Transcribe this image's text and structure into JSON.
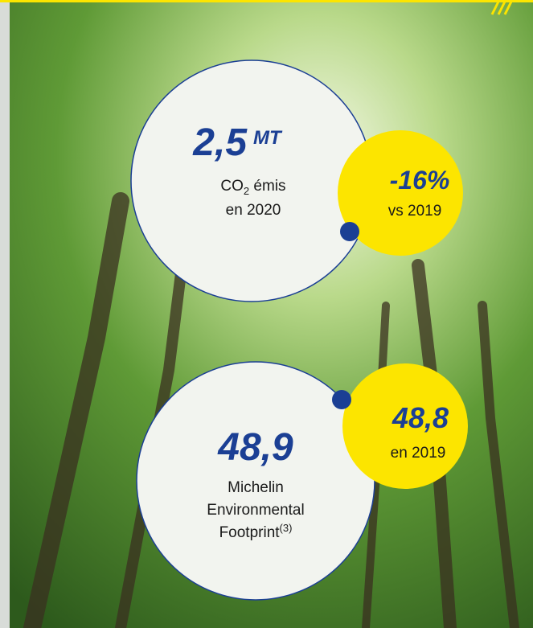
{
  "emission": {
    "value": "2,5",
    "unit": "MT",
    "label_prefix": "CO",
    "label_sub": "2",
    "label_suffix": " émis",
    "label_line2": "en 2020"
  },
  "emission_change": {
    "value": "-16%",
    "label": "vs 2019"
  },
  "footprint": {
    "value": "48,9",
    "line1": "Michelin",
    "line2": "Environmental",
    "line3": "Footprint",
    "note": "(3)"
  },
  "footprint_previous": {
    "value": "48,8",
    "label": "en 2019"
  }
}
